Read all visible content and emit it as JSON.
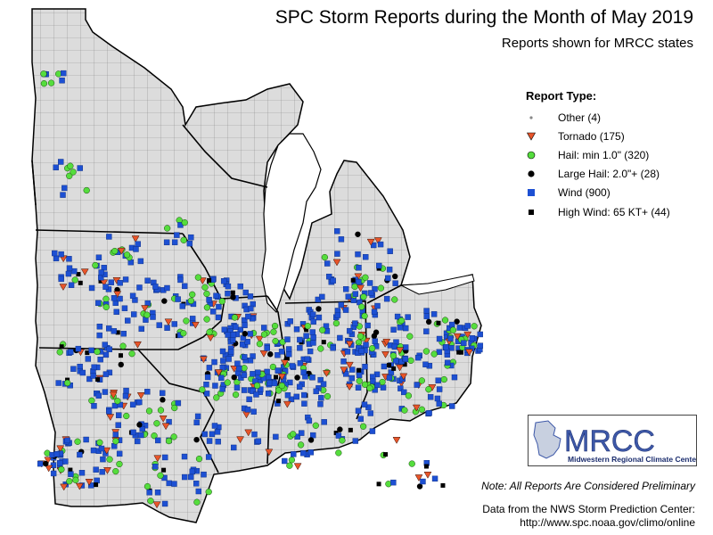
{
  "title": "SPC Storm Reports during the Month of May 2019",
  "subtitle": "Reports shown for MRCC states",
  "legend": {
    "title": "Report Type:",
    "items": [
      {
        "key": "other",
        "label": "Other (4)",
        "color": "#888888",
        "symbol": "small-dot"
      },
      {
        "key": "tornado",
        "label": "Tornado (175)",
        "color": "#e8552a",
        "symbol": "down-triangle"
      },
      {
        "key": "hail",
        "label": "Hail: min 1.0\" (320)",
        "color": "#55dd3d",
        "symbol": "circle"
      },
      {
        "key": "large_hail",
        "label": "Large Hail: 2.0\"+ (28)",
        "color": "#000000",
        "symbol": "circle"
      },
      {
        "key": "wind",
        "label": "Wind (900)",
        "color": "#1d50d3",
        "symbol": "square"
      },
      {
        "key": "high_wind",
        "label": "High Wind: 65 KT+ (44)",
        "color": "#000000",
        "symbol": "square"
      }
    ]
  },
  "logo": {
    "text": "MRCC",
    "subtext": "Midwestern Regional Climate Center"
  },
  "note": "Note: All Reports Are Considered Preliminary",
  "credit_line1": "Data from the NWS Storm Prediction Center:",
  "credit_line2": "http://www.spc.noaa.gov/climo/online",
  "colors": {
    "land": "#dcdcdc",
    "water": "#ffffff",
    "county_lines": "#8a8a8a",
    "state_lines": "#000000"
  }
}
